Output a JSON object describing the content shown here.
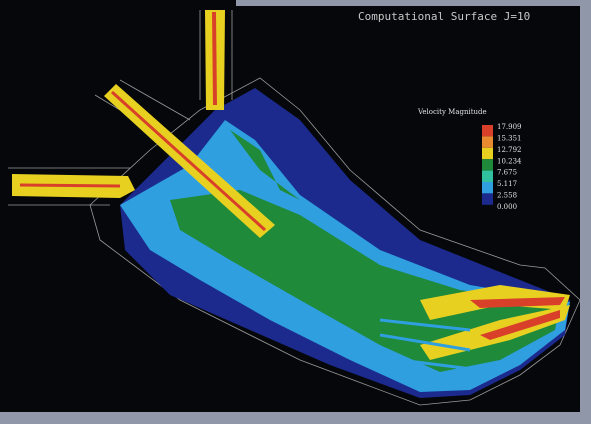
{
  "title": "Computational Surface J=10",
  "legend": {
    "title": "Velocity Magnitude",
    "labels": [
      "17.909",
      "15.351",
      "12.792",
      "10.234",
      "7.675",
      "5.117",
      "2.558",
      "0.000"
    ]
  }
}
